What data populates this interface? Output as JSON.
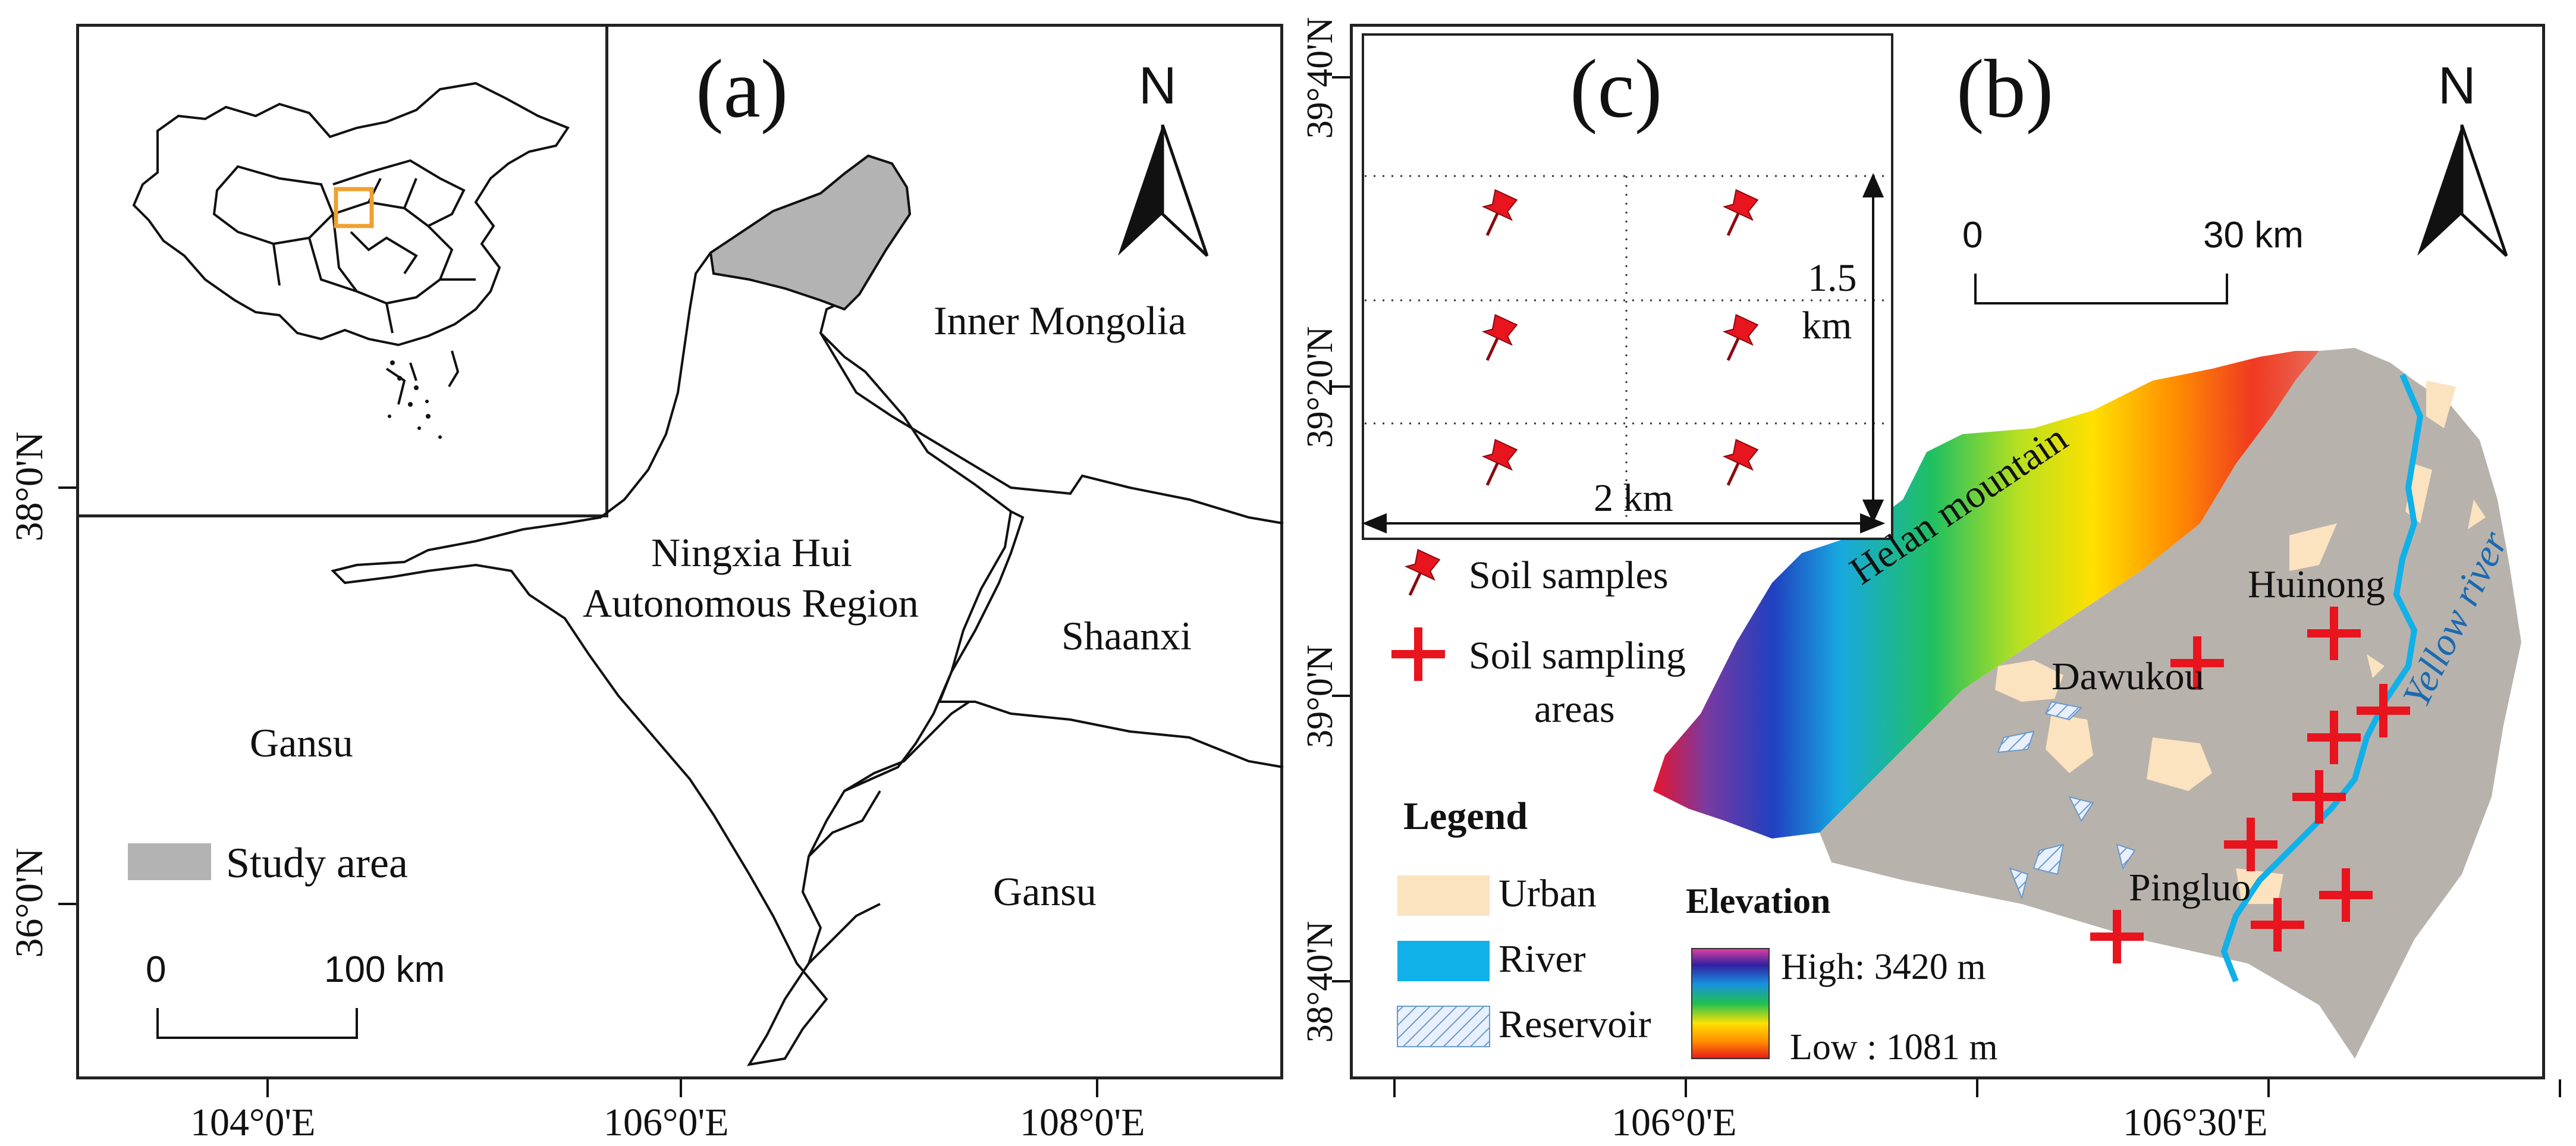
{
  "panel_a": {
    "label": "(a)",
    "north": "N",
    "regions": {
      "inner_mongolia": "Inner Mongolia",
      "ningxia_line1": "Ningxia Hui",
      "ningxia_line2": "Autonomous Region",
      "shaanxi": "Shaanxi",
      "gansu_west": "Gansu",
      "gansu_south": "Gansu"
    },
    "legend_study_area": "Study area",
    "scale": {
      "start": "0",
      "end": "100 km"
    },
    "x_ticks": [
      "104°0'E",
      "106°0'E",
      "108°0'E"
    ],
    "y_ticks": [
      "38°0'N",
      "36°0'N"
    ],
    "study_area_color": "#b3b3b3",
    "locator_box_color": "#f0a030"
  },
  "panel_b": {
    "label": "(b)",
    "north": "N",
    "scale": {
      "start": "0",
      "end": "30 km"
    },
    "places": {
      "helan": "Helan mountain",
      "huinong": "Huinong",
      "dawukou": "Dawukou",
      "pingluo": "Pingluo",
      "yellow_river": "Yellow river"
    },
    "x_ticks": [
      "106°0'E",
      "106°30'E"
    ],
    "y_ticks": [
      "39°40'N",
      "39°20'N",
      "39°0'N",
      "38°40'N"
    ],
    "legend": {
      "title": "Legend",
      "urban": "Urban",
      "river": "River",
      "reservoir": "Reservoir",
      "elevation_title": "Elevation",
      "high": "High: 3420 m",
      "low": "Low : 1081 m"
    },
    "symbols": {
      "soil_samples": "Soil  samples",
      "sampling_areas_line1": "Soil  sampling",
      "sampling_areas_line2": "areas"
    },
    "colors": {
      "urban": "#fbe3c0",
      "river": "#10b0e8",
      "plain": "#b8b2ac",
      "marker": "#e8141e"
    }
  },
  "panel_c": {
    "label": "(c)",
    "dim_vertical_value": "1.5",
    "dim_vertical_unit": "km",
    "dim_horizontal": "2 km"
  }
}
